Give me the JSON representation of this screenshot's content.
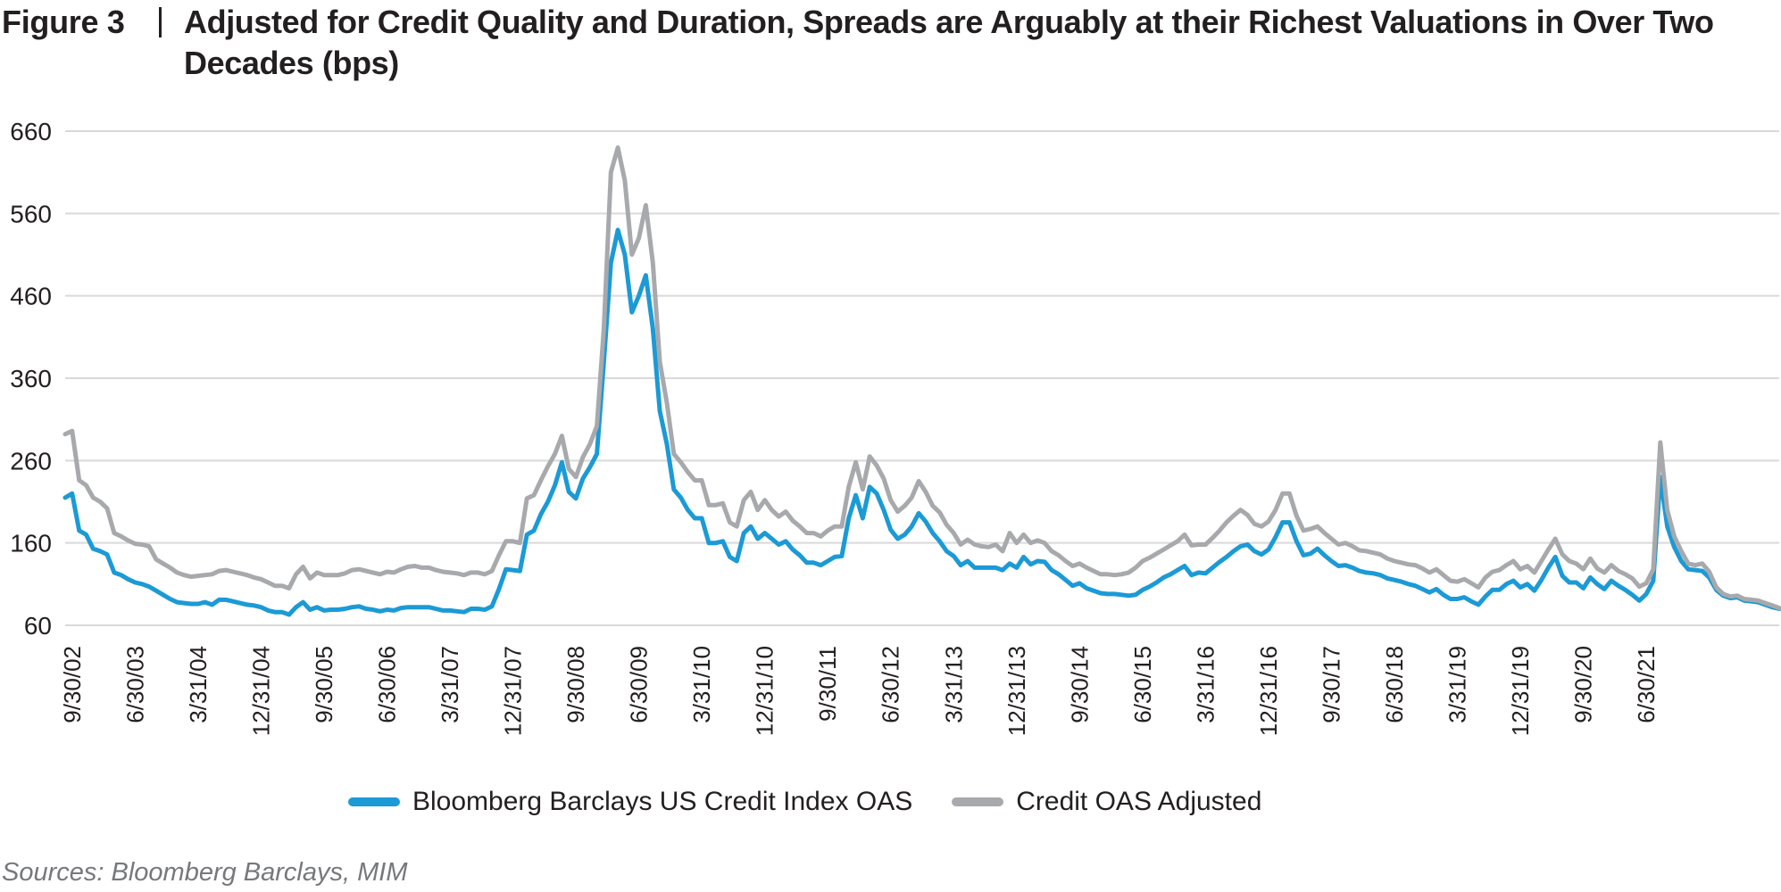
{
  "figure": {
    "label": "Figure 3",
    "title": "Adjusted for Credit Quality and Duration, Spreads are Arguably at their Richest Valuations in Over Two Decades (bps)",
    "sources": "Sources: Bloomberg Barclays, MIM"
  },
  "chart_data": {
    "type": "line",
    "title": "Adjusted for Credit Quality and Duration, Spreads are Arguably at their Richest Valuations in Over Two Decades (bps)",
    "xlabel": "",
    "ylabel": "bps",
    "ylim": [
      60,
      660
    ],
    "yticks": [
      660,
      560,
      460,
      360,
      260,
      160,
      60
    ],
    "grid": true,
    "legend_position": "bottom-center",
    "x_start": "8/31/02",
    "x_end": "8/31/21",
    "frequency": "monthly",
    "xtick_labels": [
      "9/30/02",
      "6/30/03",
      "3/31/04",
      "12/31/04",
      "9/30/05",
      "6/30/06",
      "3/31/07",
      "12/31/07",
      "9/30/08",
      "6/30/09",
      "3/31/10",
      "12/31/10",
      "9/30/11",
      "6/30/12",
      "3/31/13",
      "12/31/13",
      "9/30/14",
      "6/30/15",
      "3/31/16",
      "12/31/16",
      "9/30/17",
      "6/30/18",
      "3/31/19",
      "12/31/19",
      "9/30/20",
      "6/30/21"
    ],
    "xtick_month_index": [
      1,
      10,
      19,
      28,
      37,
      46,
      55,
      64,
      73,
      82,
      91,
      100,
      109,
      118,
      127,
      136,
      145,
      154,
      163,
      172,
      181,
      190,
      199,
      208,
      217,
      226
    ],
    "series": [
      {
        "name": "Bloomberg Barclays US Credit Index OAS",
        "color": "#1b9ad6",
        "values": [
          215,
          220,
          175,
          170,
          153,
          150,
          146,
          124,
          121,
          116,
          112,
          110,
          107,
          102,
          97,
          92,
          88,
          87,
          86,
          86,
          88,
          85,
          91,
          91,
          89,
          87,
          85,
          84,
          82,
          78,
          76,
          76,
          73,
          82,
          88,
          79,
          82,
          78,
          79,
          79,
          80,
          82,
          83,
          80,
          79,
          77,
          79,
          78,
          81,
          82,
          82,
          82,
          82,
          80,
          78,
          78,
          77,
          76,
          80,
          80,
          79,
          83,
          104,
          128,
          127,
          126,
          170,
          175,
          195,
          210,
          230,
          258,
          222,
          214,
          238,
          252,
          268,
          380,
          500,
          540,
          510,
          440,
          460,
          485,
          420,
          320,
          280,
          225,
          215,
          200,
          190,
          190,
          160,
          160,
          162,
          143,
          138,
          172,
          180,
          165,
          172,
          165,
          158,
          162,
          152,
          145,
          136,
          136,
          133,
          138,
          143,
          144,
          190,
          218,
          190,
          228,
          220,
          200,
          176,
          165,
          170,
          180,
          196,
          186,
          172,
          162,
          150,
          144,
          133,
          138,
          130,
          130,
          130,
          130,
          127,
          135,
          130,
          143,
          134,
          138,
          137,
          127,
          122,
          115,
          108,
          111,
          105,
          102,
          99,
          98,
          98,
          97,
          96,
          97,
          103,
          107,
          112,
          118,
          122,
          127,
          132,
          121,
          124,
          123,
          130,
          137,
          143,
          150,
          156,
          158,
          150,
          146,
          152,
          167,
          185,
          185,
          162,
          145,
          147,
          153,
          145,
          138,
          132,
          133,
          130,
          126,
          124,
          123,
          121,
          117,
          115,
          113,
          110,
          108,
          104,
          100,
          104,
          97,
          92,
          92,
          94,
          89,
          85,
          95,
          103,
          103,
          110,
          114,
          106,
          110,
          102,
          115,
          130,
          143,
          120,
          112,
          112,
          105,
          118,
          110,
          104,
          114,
          108,
          103,
          97,
          90,
          98,
          114,
          240,
          180,
          155,
          138,
          128,
          127,
          126,
          118,
          103,
          96,
          93,
          94,
          90,
          89,
          88,
          85,
          82,
          80
        ],
        "_note": "values approximate, read from chart"
      },
      {
        "name": "Credit OAS Adjusted",
        "color": "#a7a9ac",
        "values": [
          292,
          296,
          236,
          230,
          215,
          210,
          202,
          172,
          168,
          163,
          159,
          158,
          156,
          140,
          135,
          130,
          124,
          121,
          119,
          120,
          121,
          122,
          126,
          127,
          125,
          123,
          121,
          118,
          116,
          112,
          108,
          108,
          105,
          122,
          131,
          117,
          124,
          121,
          121,
          121,
          123,
          127,
          128,
          126,
          124,
          122,
          125,
          124,
          128,
          131,
          132,
          130,
          130,
          127,
          125,
          124,
          123,
          121,
          124,
          124,
          122,
          126,
          145,
          162,
          162,
          160,
          214,
          218,
          236,
          253,
          268,
          290,
          250,
          240,
          264,
          280,
          302,
          420,
          610,
          640,
          600,
          510,
          530,
          570,
          500,
          380,
          330,
          268,
          258,
          246,
          236,
          236,
          206,
          206,
          208,
          185,
          180,
          212,
          222,
          200,
          212,
          200,
          192,
          198,
          187,
          180,
          172,
          172,
          168,
          175,
          180,
          180,
          228,
          258,
          225,
          265,
          254,
          238,
          212,
          198,
          205,
          215,
          235,
          222,
          205,
          197,
          182,
          172,
          158,
          164,
          158,
          156,
          155,
          158,
          150,
          172,
          160,
          170,
          160,
          163,
          160,
          150,
          145,
          138,
          132,
          135,
          130,
          126,
          122,
          122,
          121,
          122,
          124,
          130,
          138,
          142,
          147,
          152,
          157,
          162,
          170,
          157,
          158,
          158,
          166,
          175,
          185,
          193,
          200,
          194,
          183,
          180,
          186,
          200,
          220,
          220,
          193,
          175,
          177,
          180,
          172,
          165,
          158,
          160,
          156,
          151,
          150,
          148,
          146,
          141,
          138,
          136,
          134,
          133,
          129,
          124,
          128,
          121,
          114,
          113,
          116,
          111,
          106,
          118,
          125,
          127,
          133,
          138,
          128,
          132,
          124,
          138,
          152,
          165,
          146,
          138,
          135,
          128,
          141,
          129,
          124,
          133,
          126,
          122,
          117,
          107,
          111,
          128,
          282,
          200,
          168,
          150,
          135,
          133,
          135,
          125,
          106,
          98,
          95,
          96,
          92,
          91,
          90,
          87,
          84,
          81
        ],
        "_note": "values approximate, read from chart"
      }
    ]
  },
  "legend": {
    "items": [
      {
        "label": "Bloomberg Barclays US Credit Index OAS",
        "color": "#1b9ad6"
      },
      {
        "label": "Credit OAS Adjusted",
        "color": "#a7a9ac"
      }
    ]
  }
}
